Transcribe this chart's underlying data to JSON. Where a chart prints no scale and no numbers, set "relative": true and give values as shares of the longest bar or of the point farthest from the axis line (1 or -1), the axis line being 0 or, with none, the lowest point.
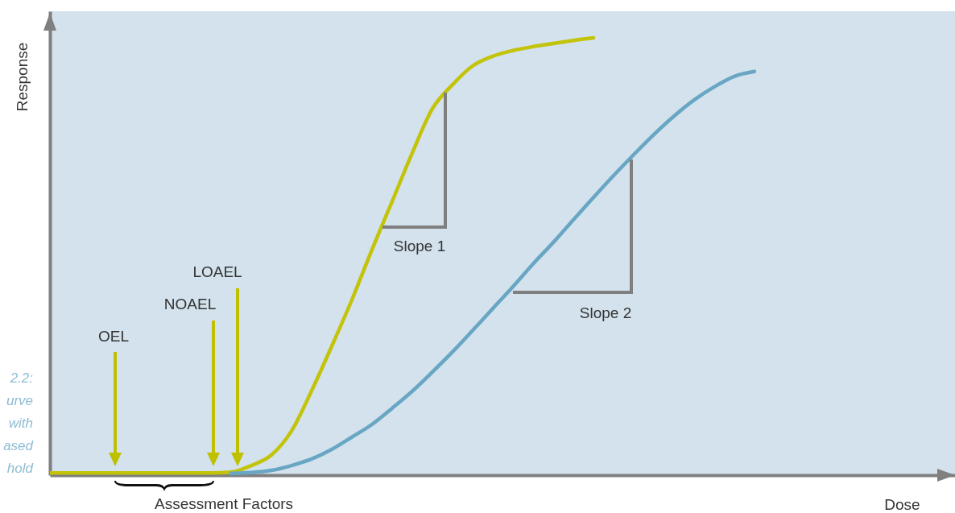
{
  "chart_data": {
    "type": "line",
    "relative": true,
    "xlabel": "Dose",
    "ylabel": "Response",
    "categories": [
      null,
      null,
      null,
      null,
      null,
      null,
      null,
      null,
      null,
      null,
      null,
      null,
      null,
      null,
      null,
      null,
      null,
      null,
      null,
      null,
      null,
      null,
      null,
      null,
      null,
      null,
      null,
      null,
      null,
      null,
      null,
      null,
      null,
      null,
      null,
      null,
      null,
      null,
      null,
      null,
      null,
      null,
      null,
      null,
      null
    ],
    "series": [
      {
        "color": "#c3c30a",
        "values": [
          0.005,
          0.005,
          0.005,
          0.005,
          0.005,
          0.005,
          0.005,
          0.005,
          0.005,
          0.007,
          0.022,
          0.046,
          0.101,
          0.193,
          0.295,
          0.401,
          0.516,
          0.626,
          0.737,
          0.838,
          0.893,
          0.936,
          0.958,
          0.971,
          0.98,
          0.987,
          0.994,
          1,
          null,
          null,
          null,
          null,
          null,
          null,
          null,
          null,
          null,
          null,
          null,
          null,
          null,
          null,
          null,
          null,
          null
        ]
      },
      {
        "color": "#68a6c4",
        "values": [
          null,
          null,
          null,
          null,
          null,
          null,
          null,
          null,
          null,
          0.004,
          0.006,
          0.011,
          0.022,
          0.037,
          0.059,
          0.087,
          0.116,
          0.153,
          0.192,
          0.236,
          0.282,
          0.331,
          0.381,
          0.431,
          0.483,
          0.532,
          0.584,
          0.635,
          0.685,
          0.733,
          0.779,
          0.821,
          0.858,
          0.888,
          0.912,
          0.923,
          null,
          null,
          null,
          null,
          null,
          null,
          null,
          null,
          null
        ]
      }
    ],
    "annotations": [
      "OEL",
      "NOAEL",
      "LOAEL",
      "Slope 1",
      "Slope 2",
      "Assessment Factors",
      "2.2: urve with ased hold"
    ]
  }
}
